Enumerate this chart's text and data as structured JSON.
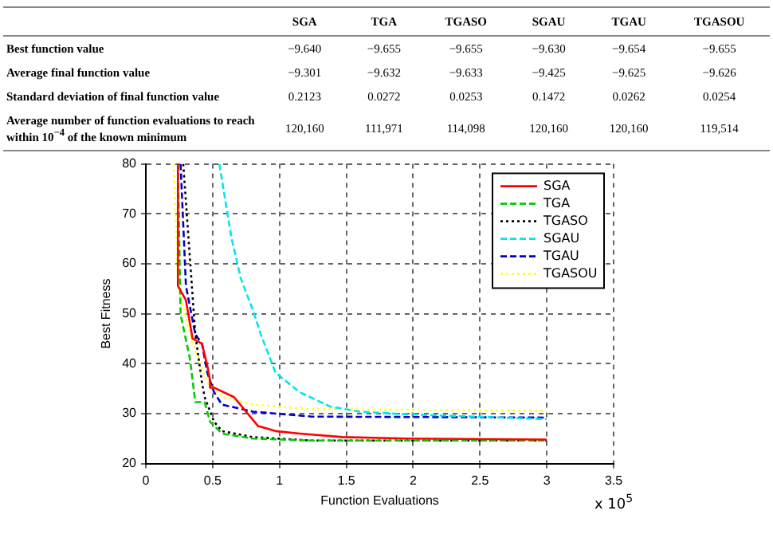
{
  "chart_data": [
    {
      "type": "other",
      "categories": [
        "SGA",
        "TGA",
        "TGASO",
        "SGAU",
        "TGAU",
        "TGASOU"
      ],
      "y_categories": [
        "Best function value",
        "Average final function value",
        "Standard deviation of final function value",
        "Average number of function evaluations to reach within 10$^{−4}$ of the known minimum"
      ],
      "cell_labels": [
        [
          "−9.640",
          "−9.655",
          "−9.655",
          "−9.630",
          "−9.654",
          "−9.655"
        ],
        [
          "−9.301",
          "−9.632",
          "−9.633",
          "−9.425",
          "−9.625",
          "−9.626"
        ],
        [
          "0.2123",
          "0.0272",
          "0.0253",
          "0.1472",
          "0.0262",
          "0.0254"
        ],
        [
          "120,160",
          "111,971",
          "114,098",
          "120,160",
          "120,160",
          "119,514"
        ]
      ]
    },
    {
      "type": "line",
      "xlabel": "Function Evaluations",
      "ylabel": "Best Fitness",
      "xlim": [
        0,
        3.5
      ],
      "xticks": [
        0,
        0.5,
        1,
        1.5,
        2,
        2.5,
        3,
        3.5
      ],
      "ylim": [
        20,
        80
      ],
      "yticks": [
        20,
        30,
        40,
        50,
        60,
        70,
        80
      ],
      "grid": true,
      "legend": "top right",
      "annotations": [
        "x 10$^{5}$"
      ],
      "series": [
        {
          "name": "SGA",
          "color": "#ff0000",
          "line_style": "solid",
          "x": [
            0.24,
            0.24,
            0.3,
            0.35,
            0.42,
            0.46,
            0.48,
            0.48,
            0.51,
            0.66,
            0.84,
            0.97,
            1.15,
            1.47,
            1.96,
            3
          ],
          "values": [
            80,
            55.6,
            52.7,
            45,
            44,
            39.6,
            36.7,
            35.2,
            35.2,
            33.3,
            27.5,
            26.5,
            26,
            25.3,
            25,
            24.8
          ]
        },
        {
          "name": "TGA",
          "color": "#00cc00",
          "line_style": "dashed",
          "x": [
            0.24,
            0.26,
            0.33,
            0.37,
            0.44,
            0.48,
            0.57,
            0.8,
            1.24,
            3
          ],
          "values": [
            80,
            49.8,
            41,
            32.3,
            32.3,
            28.4,
            26,
            25,
            24.6,
            24.6
          ]
        },
        {
          "name": "TGASO",
          "color": "#000000",
          "line_style": "dotted",
          "x": [
            0.28,
            0.37,
            0.42,
            0.44,
            0.51,
            0.57,
            0.8,
            1.24,
            3
          ],
          "values": [
            80,
            45.9,
            36.2,
            33.3,
            28.4,
            26.5,
            25.3,
            24.6,
            24.6
          ]
        },
        {
          "name": "SGAU",
          "color": "#00e5ee",
          "line_style": "dashed",
          "x": [
            0.55,
            0.64,
            0.71,
            0.8,
            0.86,
            0.97,
            1.15,
            1.38,
            1.6,
            1.91,
            3
          ],
          "values": [
            80,
            65.3,
            57.1,
            50.8,
            45.9,
            38.2,
            34.3,
            31.4,
            30.4,
            29.9,
            28.9
          ]
        },
        {
          "name": "TGAU",
          "color": "#0000cc",
          "line_style": "dashed",
          "x": [
            0.26,
            0.3,
            0.37,
            0.42,
            0.46,
            0.51,
            0.57,
            0.8,
            1.24,
            3
          ],
          "values": [
            80,
            55.6,
            45.9,
            44,
            38.2,
            34.3,
            31.8,
            30.4,
            29.4,
            29.2
          ]
        },
        {
          "name": "TGASOU",
          "color": "#ffff33",
          "line_style": "dotted",
          "x": [
            0.21,
            0.24,
            0.35,
            0.46,
            0.57,
            0.8,
            1.24,
            3
          ],
          "values": [
            80,
            55.6,
            44,
            36.2,
            33.3,
            31.8,
            30.9,
            30.6
          ]
        }
      ]
    }
  ]
}
